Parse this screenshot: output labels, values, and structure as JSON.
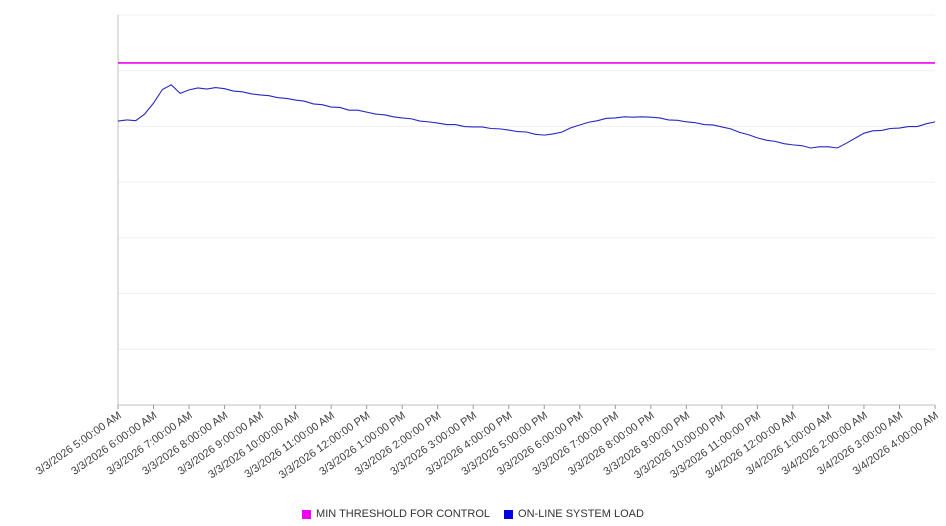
{
  "chart_data": {
    "type": "line",
    "title": "",
    "xlabel": "",
    "ylabel": "",
    "ylim": [
      0,
      100
    ],
    "grid": true,
    "grid_divisions": 7,
    "x_tick_rotation": -35,
    "categories": [
      "3/3/2026 5:00:00 AM",
      "3/3/2026 6:00:00 AM",
      "3/3/2026 7:00:00 AM",
      "3/3/2026 8:00:00 AM",
      "3/3/2026 9:00:00 AM",
      "3/3/2026 10:00:00 AM",
      "3/3/2026 11:00:00 AM",
      "3/3/2026 12:00:00 PM",
      "3/3/2026 1:00:00 PM",
      "3/3/2026 2:00:00 PM",
      "3/3/2026 3:00:00 PM",
      "3/3/2026 4:00:00 PM",
      "3/3/2026 5:00:00 PM",
      "3/3/2026 6:00:00 PM",
      "3/3/2026 7:00:00 PM",
      "3/3/2026 8:00:00 PM",
      "3/3/2026 9:00:00 PM",
      "3/3/2026 10:00:00 PM",
      "3/3/2026 11:00:00 PM",
      "3/4/2026 12:00:00 AM",
      "3/4/2026 1:00:00 AM",
      "3/4/2026 2:00:00 AM",
      "3/4/2026 3:00:00 AM",
      "3/4/2026 4:00:00 AM"
    ],
    "threshold": {
      "name": "MIN THRESHOLD FOR CONTROL",
      "value": 87.7,
      "color": "#f000f0"
    },
    "series": [
      {
        "name": "ON-LINE SYSTEM LOAD",
        "color": "#2727c3",
        "samples_per_interval": 4,
        "values": [
          72.8,
          73.1,
          72.9,
          74.6,
          77.4,
          80.9,
          82.1,
          79.9,
          80.8,
          81.3,
          81.0,
          81.4,
          81.1,
          80.5,
          80.3,
          79.8,
          79.5,
          79.3,
          78.8,
          78.6,
          78.2,
          77.9,
          77.2,
          77.0,
          76.4,
          76.3,
          75.6,
          75.6,
          75.1,
          74.6,
          74.4,
          73.9,
          73.6,
          73.4,
          72.8,
          72.6,
          72.3,
          71.9,
          71.9,
          71.4,
          71.3,
          71.3,
          70.9,
          70.8,
          70.5,
          70.1,
          70.0,
          69.4,
          69.2,
          69.5,
          70.0,
          71.1,
          71.8,
          72.5,
          72.9,
          73.5,
          73.6,
          73.9,
          73.8,
          73.9,
          73.8,
          73.6,
          73.1,
          73.0,
          72.6,
          72.4,
          71.9,
          71.8,
          71.3,
          70.8,
          69.9,
          69.3,
          68.5,
          67.9,
          67.6,
          67.0,
          66.7,
          66.5,
          65.9,
          66.2,
          66.2,
          65.9,
          67.1,
          68.4,
          69.7,
          70.3,
          70.4,
          70.9,
          71.0,
          71.4,
          71.4,
          72.1,
          72.6
        ]
      }
    ],
    "legend": [
      {
        "label": "MIN THRESHOLD FOR CONTROL",
        "color": "#f000f0"
      },
      {
        "label": "ON-LINE SYSTEM LOAD",
        "color": "#0000e0"
      }
    ],
    "colors": {
      "grid": "#efefef",
      "axis": "#c0c0c0",
      "tick": "#999999",
      "tick_label": "#404040"
    }
  }
}
